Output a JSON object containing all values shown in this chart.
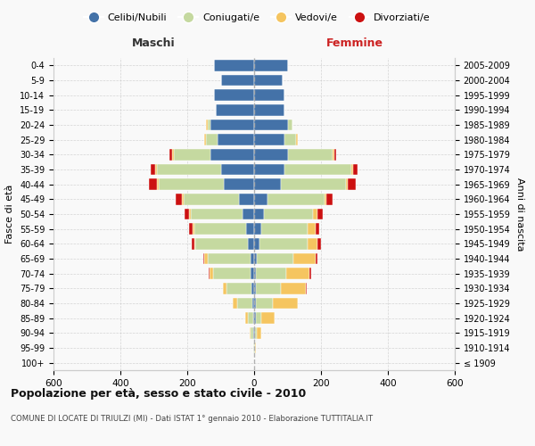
{
  "age_groups": [
    "100+",
    "95-99",
    "90-94",
    "85-89",
    "80-84",
    "75-79",
    "70-74",
    "65-69",
    "60-64",
    "55-59",
    "50-54",
    "45-49",
    "40-44",
    "35-39",
    "30-34",
    "25-29",
    "20-24",
    "15-19",
    "10-14",
    "5-9",
    "0-4"
  ],
  "birth_years": [
    "≤ 1909",
    "1910-1914",
    "1915-1919",
    "1920-1924",
    "1925-1929",
    "1930-1934",
    "1935-1939",
    "1940-1944",
    "1945-1949",
    "1950-1954",
    "1955-1959",
    "1960-1964",
    "1965-1969",
    "1970-1974",
    "1975-1979",
    "1980-1984",
    "1985-1989",
    "1990-1994",
    "1995-1999",
    "2000-2004",
    "2005-2009"
  ],
  "male": {
    "celibi": [
      0,
      0,
      2,
      3,
      5,
      8,
      12,
      10,
      20,
      25,
      35,
      45,
      90,
      100,
      130,
      110,
      130,
      115,
      120,
      100,
      120
    ],
    "coniugati": [
      0,
      2,
      8,
      15,
      45,
      75,
      110,
      130,
      155,
      155,
      155,
      165,
      195,
      190,
      110,
      35,
      10,
      0,
      0,
      0,
      0
    ],
    "vedovi": [
      0,
      0,
      3,
      8,
      15,
      10,
      12,
      10,
      5,
      5,
      5,
      5,
      5,
      5,
      5,
      5,
      5,
      0,
      0,
      0,
      0
    ],
    "divorziati": [
      0,
      0,
      0,
      0,
      0,
      0,
      3,
      3,
      8,
      10,
      12,
      20,
      25,
      15,
      8,
      0,
      0,
      0,
      0,
      0,
      0
    ]
  },
  "female": {
    "nubili": [
      0,
      0,
      2,
      4,
      5,
      5,
      5,
      8,
      15,
      20,
      30,
      40,
      80,
      90,
      100,
      90,
      100,
      90,
      90,
      85,
      100
    ],
    "coniugate": [
      0,
      2,
      5,
      18,
      50,
      75,
      90,
      110,
      145,
      140,
      145,
      170,
      195,
      200,
      135,
      35,
      15,
      0,
      0,
      0,
      0
    ],
    "vedove": [
      0,
      2,
      15,
      40,
      75,
      75,
      70,
      65,
      30,
      25,
      15,
      5,
      5,
      5,
      5,
      5,
      0,
      0,
      0,
      0,
      0
    ],
    "divorziate": [
      0,
      0,
      0,
      0,
      0,
      3,
      5,
      5,
      10,
      10,
      15,
      20,
      25,
      15,
      5,
      0,
      0,
      0,
      0,
      0,
      0
    ]
  },
  "color_celibi": "#4472a8",
  "color_coniugati": "#c5d9a0",
  "color_vedovi": "#f5c560",
  "color_divorziati": "#cc1111",
  "title": "Popolazione per età, sesso e stato civile - 2010",
  "subtitle": "COMUNE DI LOCATE DI TRIULZI (MI) - Dati ISTAT 1° gennaio 2010 - Elaborazione TUTTITALIA.IT",
  "xlabel_left": "Maschi",
  "xlabel_right": "Femmine",
  "ylabel_left": "Fasce di età",
  "ylabel_right": "Anni di nascita",
  "xlim": 600,
  "legend_labels": [
    "Celibi/Nubili",
    "Coniugati/e",
    "Vedovi/e",
    "Divorziati/e"
  ],
  "bg_color": "#f9f9f9",
  "grid_color": "#cccccc"
}
